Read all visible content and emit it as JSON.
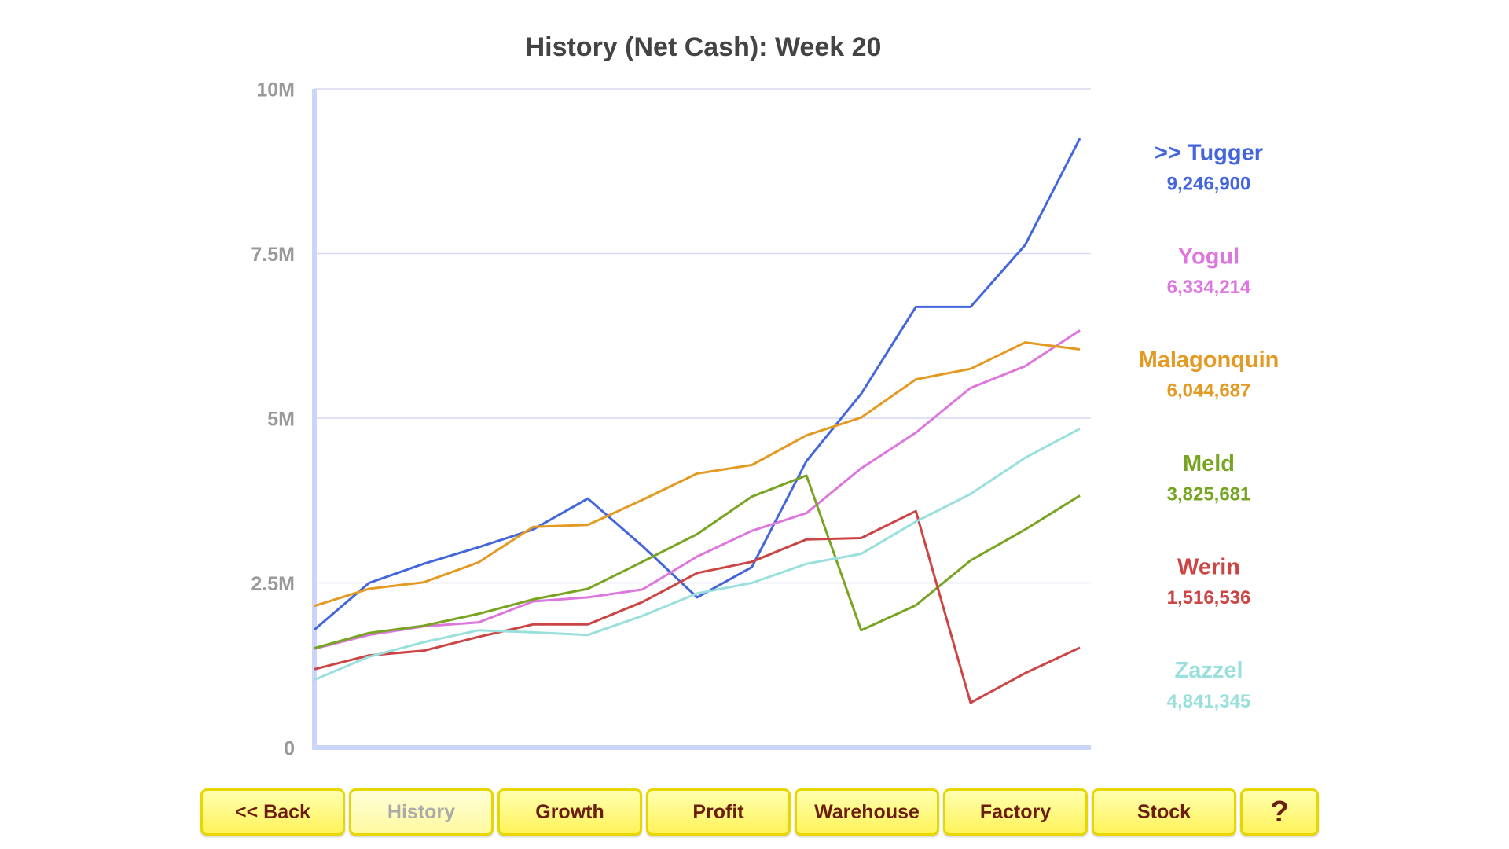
{
  "chart_data": {
    "type": "line",
    "title": "History (Net Cash): Week 20",
    "categories": [
      null,
      null,
      null,
      null,
      null,
      null,
      null,
      null,
      null,
      null,
      null,
      null,
      null,
      null,
      null
    ],
    "ylim": [
      0,
      10000000
    ],
    "yticks": [
      0,
      {
        "value": 2500000,
        "label": "2.5M"
      },
      {
        "value": 5000000,
        "label": "5M"
      },
      {
        "value": 7500000,
        "label": "7.5M"
      },
      {
        "value": 10000000,
        "label": "10M"
      }
    ],
    "grid": true,
    "series": [
      {
        "name": ">> Tugger",
        "color": "#4466dd",
        "label": "9,246,900",
        "values": [
          1790000,
          2500000,
          2790000,
          3040000,
          3310000,
          3780000,
          3060000,
          2280000,
          2740000,
          4350000,
          5370000,
          6690000,
          6690000,
          7630000,
          9246900
        ]
      },
      {
        "name": "Yogul",
        "color": "#dd77dd",
        "label": "6,334,214",
        "values": [
          1500000,
          1710000,
          1840000,
          1900000,
          2220000,
          2280000,
          2400000,
          2900000,
          3290000,
          3560000,
          4240000,
          4780000,
          5460000,
          5790000,
          6334214
        ]
      },
      {
        "name": "Malagonquin",
        "color": "#e39a22",
        "label": "6,044,687",
        "values": [
          2150000,
          2410000,
          2510000,
          2810000,
          3350000,
          3380000,
          3760000,
          4160000,
          4290000,
          4740000,
          5010000,
          5590000,
          5750000,
          6150000,
          6044687
        ]
      },
      {
        "name": "Meld",
        "color": "#77a522",
        "label": "3,825,681",
        "values": [
          1510000,
          1740000,
          1850000,
          2030000,
          2250000,
          2410000,
          2820000,
          3240000,
          3810000,
          4130000,
          1780000,
          2160000,
          2840000,
          3310000,
          3825681
        ]
      },
      {
        "name": "Werin",
        "color": "#cc4444",
        "label": "1,516,536",
        "values": [
          1190000,
          1400000,
          1470000,
          1680000,
          1870000,
          1870000,
          2210000,
          2650000,
          2820000,
          3160000,
          3180000,
          3590000,
          680000,
          1130000,
          1516536
        ]
      },
      {
        "name": "Zazzel",
        "color": "#99e0dd",
        "label": "4,841,345",
        "values": [
          1030000,
          1380000,
          1600000,
          1780000,
          1750000,
          1710000,
          2000000,
          2340000,
          2500000,
          2790000,
          2940000,
          3430000,
          3850000,
          4400000,
          4841345
        ]
      }
    ]
  },
  "nav": {
    "buttons": [
      "<< Back",
      "History",
      "Growth",
      "Profit",
      "Warehouse",
      "Factory",
      "Stock",
      "?"
    ],
    "active": 1
  }
}
